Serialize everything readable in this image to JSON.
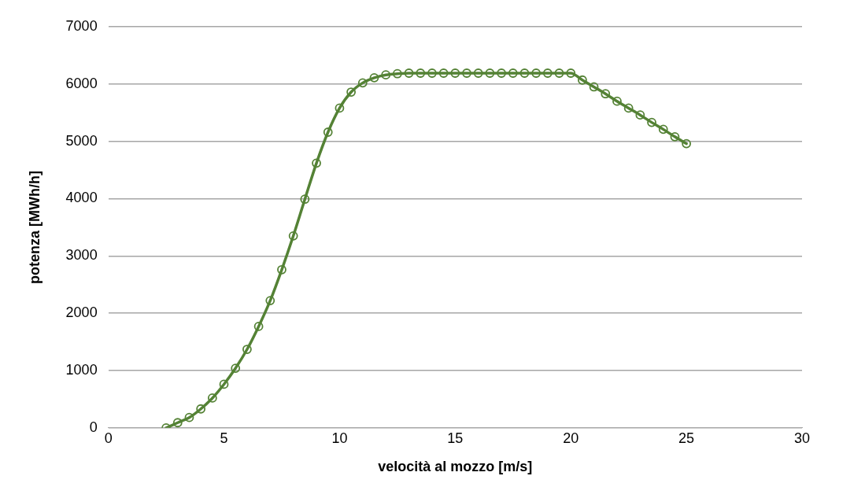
{
  "chart_data": {
    "type": "line",
    "xlabel": "velocità al mozzo [m/s]",
    "ylabel": "potenza [MWh/h]",
    "x": [
      2.5,
      3,
      3.5,
      4,
      4.5,
      5,
      5.5,
      6,
      6.5,
      7,
      7.5,
      8,
      8.5,
      9,
      9.5,
      10,
      10.5,
      11,
      11.5,
      12,
      12.5,
      13,
      13.5,
      14,
      14.5,
      15,
      15.5,
      16,
      16.5,
      17,
      17.5,
      18,
      18.5,
      19,
      19.5,
      20,
      20.5,
      21,
      21.5,
      22,
      22.5,
      23,
      23.5,
      24,
      24.5,
      25
    ],
    "series": [
      {
        "color": "#548235",
        "values": [
          0,
          90,
          180,
          330,
          520,
          760,
          1040,
          1370,
          1770,
          2220,
          2760,
          3350,
          3990,
          4620,
          5160,
          5580,
          5860,
          6020,
          6110,
          6160,
          6180,
          6190,
          6190,
          6190,
          6190,
          6190,
          6190,
          6190,
          6190,
          6190,
          6190,
          6190,
          6190,
          6190,
          6190,
          6190,
          6070,
          5950,
          5830,
          5700,
          5580,
          5460,
          5330,
          5210,
          5080,
          4960
        ]
      }
    ],
    "xlim": [
      0,
      30
    ],
    "xticks": [
      0,
      5,
      10,
      15,
      20,
      25,
      30
    ],
    "ylim": [
      0,
      7000
    ],
    "yticks": [
      0,
      1000,
      2000,
      3000,
      4000,
      5000,
      6000,
      7000
    ],
    "grid": "y",
    "legend": false,
    "marker": "circle",
    "line_style": "solid"
  }
}
